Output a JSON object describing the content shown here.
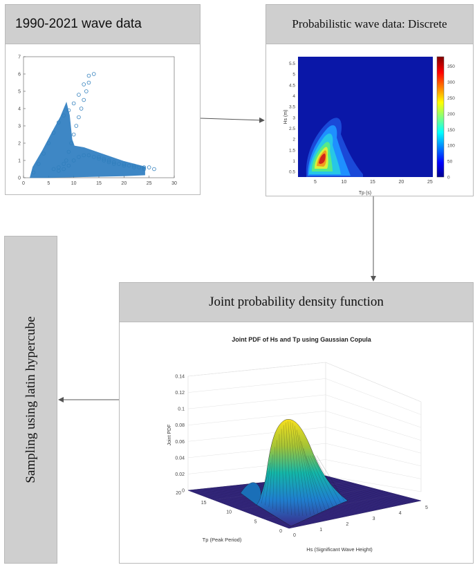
{
  "panels": {
    "raw": {
      "title": "1990-2021 wave data"
    },
    "discrete": {
      "title": "Probabilistic wave data: Discrete"
    },
    "jpdf": {
      "title": "Joint probability density function"
    },
    "sampling": {
      "title": "Sampling using latin hypercube"
    }
  },
  "chart_data": [
    {
      "type": "scatter",
      "title": "",
      "xlabel": "",
      "ylabel": "",
      "xlim": [
        0,
        30
      ],
      "ylim": [
        0,
        7
      ],
      "x_ticks": [
        "0",
        "5",
        "10",
        "15",
        "20",
        "25",
        "30"
      ],
      "y_ticks": [
        "0",
        "1",
        "2",
        "3",
        "4",
        "5",
        "6",
        "7"
      ],
      "marker": "open-circle",
      "color": "#2f7ebc",
      "series": [
        {
          "x": [
            2,
            3,
            4,
            5,
            6,
            7,
            8,
            9,
            10,
            11,
            12,
            13,
            14,
            15,
            16,
            17,
            18,
            19,
            20,
            21,
            22,
            23,
            24,
            25,
            26,
            6,
            7,
            8,
            8.5,
            9,
            9.5,
            10,
            10.5,
            11,
            11.5,
            12,
            12.5,
            13,
            7,
            8,
            9,
            10,
            11,
            12,
            13,
            14,
            15,
            16,
            17,
            18,
            20,
            22,
            24
          ],
          "y": [
            0.3,
            0.8,
            1.4,
            2.0,
            2.6,
            3.2,
            3.6,
            3.9,
            4.3,
            4.8,
            5.4,
            5.9,
            6.0,
            1.2,
            1.1,
            1.0,
            0.9,
            0.8,
            0.8,
            0.7,
            0.7,
            0.6,
            0.6,
            0.6,
            0.5,
            0.5,
            0.6,
            0.8,
            1.0,
            1.5,
            2.0,
            2.5,
            3.0,
            3.5,
            4.0,
            4.5,
            5.0,
            5.5,
            0.4,
            0.5,
            0.7,
            1.0,
            1.2,
            1.3,
            1.3,
            1.2,
            1.1,
            1.0,
            0.9,
            0.8,
            0.7,
            0.6,
            0.5
          ]
        }
      ]
    },
    {
      "type": "heatmap",
      "title": "",
      "xlabel": "Tp (s)",
      "ylabel": "Hs (m)",
      "xlim": [
        2,
        25.5
      ],
      "ylim": [
        0.25,
        5.8
      ],
      "x_ticks": [
        "5",
        "10",
        "15",
        "20",
        "25"
      ],
      "y_ticks": [
        "0.5",
        "1",
        "1.5",
        "2",
        "2.5",
        "3",
        "3.5",
        "4",
        "4.5",
        "5",
        "5.5"
      ],
      "colorbar_ticks": [
        "0",
        "50",
        "100",
        "150",
        "200",
        "250",
        "300",
        "350"
      ],
      "clim": [
        0,
        380
      ],
      "peak": {
        "Tp": 5,
        "Hs": 1.25,
        "value": 380
      }
    },
    {
      "type": "surface",
      "title": "Joint PDF of Hs and Tp using Gaussian Copula",
      "xlabel": "Hs (Significant Wave Height)",
      "ylabel": "Tp (Peak Period)",
      "zlabel": "Joint PDF",
      "z_ticks": [
        "0",
        "0.02",
        "0.04",
        "0.06",
        "0.08",
        "0.1",
        "0.12",
        "0.14"
      ],
      "hs_ticks": [
        "0",
        "1",
        "2",
        "3",
        "4",
        "5"
      ],
      "tp_ticks": [
        "0",
        "5",
        "10",
        "15",
        "20"
      ],
      "zlim": [
        0,
        0.14
      ],
      "peak": {
        "Hs": 1.2,
        "Tp": 6,
        "value": 0.08
      }
    }
  ]
}
